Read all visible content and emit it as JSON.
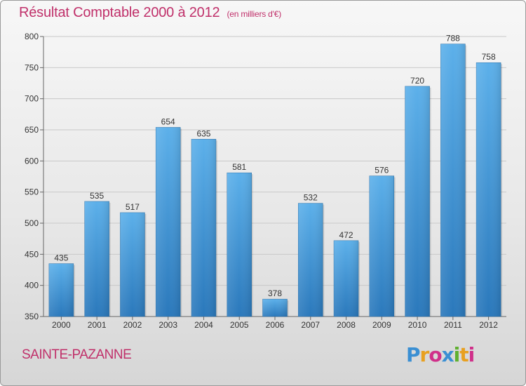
{
  "chart_data": {
    "type": "bar",
    "title": "Résultat Comptable 2000 à 2012",
    "subtitle": "(en milliers d'€)",
    "xlabel": "",
    "ylabel": "",
    "categories": [
      "2000",
      "2001",
      "2002",
      "2003",
      "2004",
      "2005",
      "2006",
      "2007",
      "2008",
      "2009",
      "2010",
      "2011",
      "2012"
    ],
    "values": [
      435,
      535,
      517,
      654,
      635,
      581,
      378,
      532,
      472,
      576,
      720,
      788,
      758
    ],
    "ylim": [
      350,
      800
    ],
    "yticks": [
      350,
      400,
      450,
      500,
      550,
      600,
      650,
      700,
      750,
      800
    ],
    "grid": true,
    "bar_color": "#3a8fd3",
    "title_color": "#c0306a"
  },
  "footer": {
    "commune": "SAINTE-PAZANNE",
    "logo_text": "Proxiti",
    "logo_colors": [
      "#3a8fd3",
      "#e8a020",
      "#d0308a",
      "#3a8fd3",
      "#60b030",
      "#e8a020",
      "#d0308a"
    ]
  }
}
